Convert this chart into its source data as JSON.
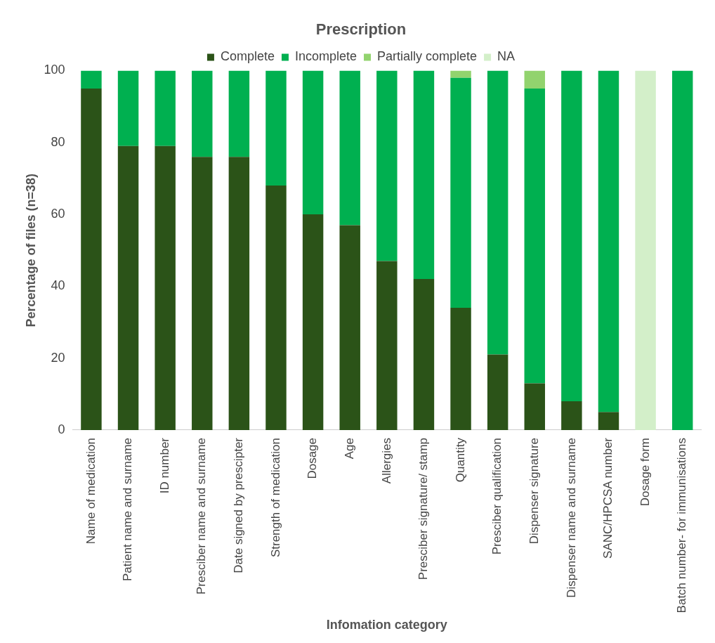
{
  "chart_data": {
    "type": "bar",
    "title": "Prescription",
    "xlabel": "Infomation category",
    "ylabel": "Percentage of files (n=38)",
    "categories": [
      "Name of medication",
      "Patient name and surname",
      "ID number",
      "Presciber name and surname",
      "Date signed by prescipter",
      "Strength of medication",
      "Dosage",
      "Age",
      "Allergies",
      "Presciber signature/ stamp",
      "Quantity",
      "Presciber qualification",
      "Dispenser signature",
      "Dispenser name and surname",
      "SANC/HPCSA number",
      "Dosage form",
      "Batch number- for immunisations"
    ],
    "series": [
      {
        "name": "Complete",
        "color": "#2b5318",
        "values": [
          95,
          79,
          79,
          76,
          76,
          68,
          60,
          57,
          47,
          42,
          34,
          21,
          13,
          8,
          5,
          0,
          0
        ]
      },
      {
        "name": "Incomplete",
        "color": "#00b050",
        "values": [
          5,
          21,
          21,
          24,
          24,
          32,
          40,
          43,
          53,
          58,
          64,
          79,
          82,
          92,
          95,
          0,
          100
        ]
      },
      {
        "name": "Partially complete",
        "color": "#92d36e",
        "values": [
          0,
          0,
          0,
          0,
          0,
          0,
          0,
          0,
          0,
          0,
          2,
          0,
          5,
          0,
          0,
          0,
          0
        ]
      },
      {
        "name": "NA",
        "color": "#d3efc9",
        "values": [
          0,
          0,
          0,
          0,
          0,
          0,
          0,
          0,
          0,
          0,
          0,
          0,
          0,
          0,
          0,
          100,
          0
        ]
      }
    ],
    "stacked": true,
    "ylim": [
      0,
      100
    ],
    "yticks": [
      0,
      20,
      40,
      60,
      80,
      100
    ],
    "grid": false,
    "legend": "top"
  }
}
